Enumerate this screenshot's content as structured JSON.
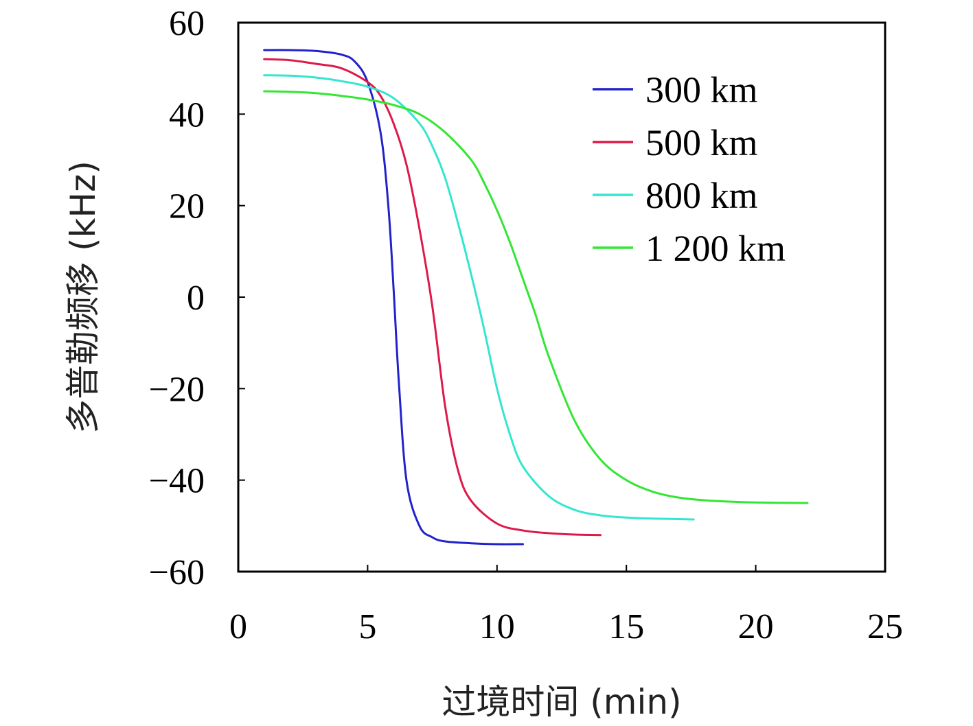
{
  "chart_data": {
    "type": "line",
    "xlabel": "过境时间 (min)",
    "ylabel": "多普勒频移 (kHz)",
    "xlim": [
      0,
      25
    ],
    "ylim": [
      -60,
      60
    ],
    "x_ticks": [
      "0",
      "5",
      "10",
      "15",
      "20",
      "25"
    ],
    "y_ticks": [
      "60",
      "40",
      "20",
      "0",
      "−20",
      "−40",
      "−60"
    ],
    "grid": false,
    "legend_position": "top-right",
    "series": [
      {
        "name": "300 km",
        "color": "#2222cc",
        "x": [
          1.0,
          2.0,
          3.0,
          4.0,
          4.5,
          5.0,
          5.5,
          5.8,
          6.0,
          6.2,
          6.5,
          7.0,
          7.5,
          8.0,
          9.0,
          10.0,
          11.0
        ],
        "y": [
          54,
          54,
          53.8,
          53,
          51.5,
          47,
          36,
          20,
          2,
          -18,
          -40,
          -50,
          -52.5,
          -53.4,
          -53.8,
          -54,
          -54
        ]
      },
      {
        "name": "500 km",
        "color": "#dd1a4a",
        "x": [
          1.0,
          2.0,
          3.0,
          4.0,
          5.0,
          5.5,
          6.0,
          6.5,
          7.0,
          7.5,
          8.0,
          8.5,
          9.0,
          10.0,
          11.0,
          12.0,
          13.0,
          14.0
        ],
        "y": [
          52,
          51.8,
          51,
          50,
          47,
          44,
          38,
          29,
          15,
          -2,
          -24,
          -38,
          -44.5,
          -49.5,
          -51,
          -51.6,
          -51.9,
          -52
        ]
      },
      {
        "name": "800 km",
        "color": "#33e6d0",
        "x": [
          1.0,
          2.0,
          3.0,
          4.0,
          5.0,
          6.0,
          7.0,
          7.5,
          8.0,
          8.5,
          9.0,
          9.5,
          10.0,
          10.5,
          11.0,
          12.0,
          13.0,
          14.0,
          15.0,
          16.0,
          17.6
        ],
        "y": [
          48.5,
          48.4,
          48,
          47.2,
          46,
          43.5,
          38,
          33,
          26,
          16,
          5,
          -7,
          -20,
          -30,
          -37,
          -43.5,
          -46.5,
          -47.7,
          -48.2,
          -48.4,
          -48.6
        ]
      },
      {
        "name": "1 200 km",
        "color": "#33e633",
        "x": [
          1.0,
          2.0,
          3.0,
          4.0,
          5.0,
          6.0,
          7.0,
          8.0,
          9.0,
          9.5,
          10.0,
          10.5,
          11.0,
          11.5,
          12.0,
          13.0,
          14.0,
          15.0,
          16.0,
          17.0,
          18.0,
          19.0,
          20.0,
          22.0
        ],
        "y": [
          45,
          44.9,
          44.6,
          44,
          43.2,
          42,
          40,
          36,
          30,
          25,
          19,
          12,
          4,
          -4,
          -13,
          -27,
          -35.5,
          -40,
          -42.5,
          -43.8,
          -44.4,
          -44.7,
          -44.9,
          -45
        ]
      }
    ]
  }
}
